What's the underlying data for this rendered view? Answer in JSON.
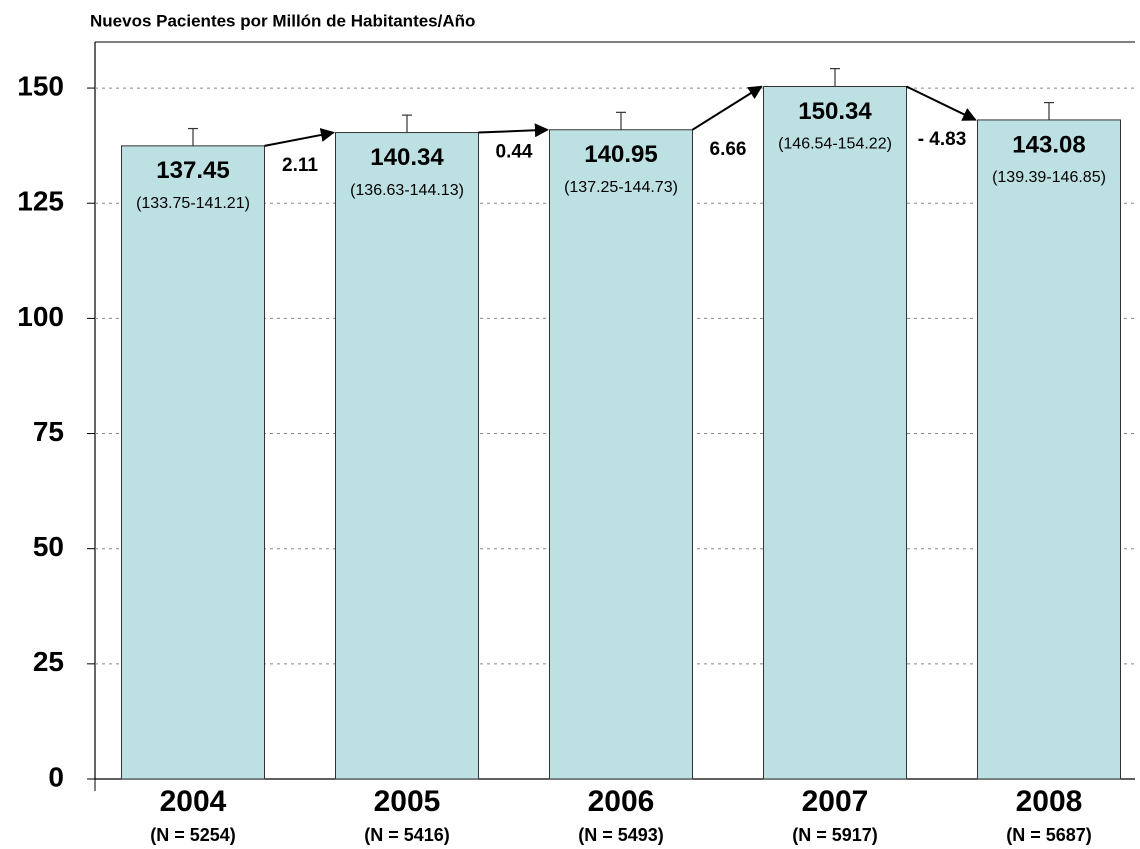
{
  "chart_data": {
    "type": "bar",
    "title": "Nuevos Pacientes por Millón de Habitantes/Año",
    "categories": [
      "2004",
      "2005",
      "2006",
      "2007",
      "2008"
    ],
    "category_sublabels": [
      "(N = 5254)",
      "(N = 5416)",
      "(N = 5493)",
      "(N = 5917)",
      "(N = 5687)"
    ],
    "values": [
      137.45,
      140.34,
      140.95,
      150.34,
      143.08
    ],
    "ci_labels": [
      "(133.75-141.21)",
      "(136.63-144.13)",
      "(137.25-144.73)",
      "(146.54-154.22)",
      "(139.39-146.85)"
    ],
    "ci_upper": [
      141.21,
      144.13,
      144.73,
      154.22,
      146.85
    ],
    "changes": [
      2.11,
      0.44,
      6.66,
      {
        "value": -4.83,
        "label": "- 4.83"
      }
    ],
    "color": "#bde0e3",
    "ylim": [
      0,
      160
    ],
    "yticks": [
      0,
      25,
      50,
      75,
      100,
      125,
      150
    ],
    "grid": true
  }
}
